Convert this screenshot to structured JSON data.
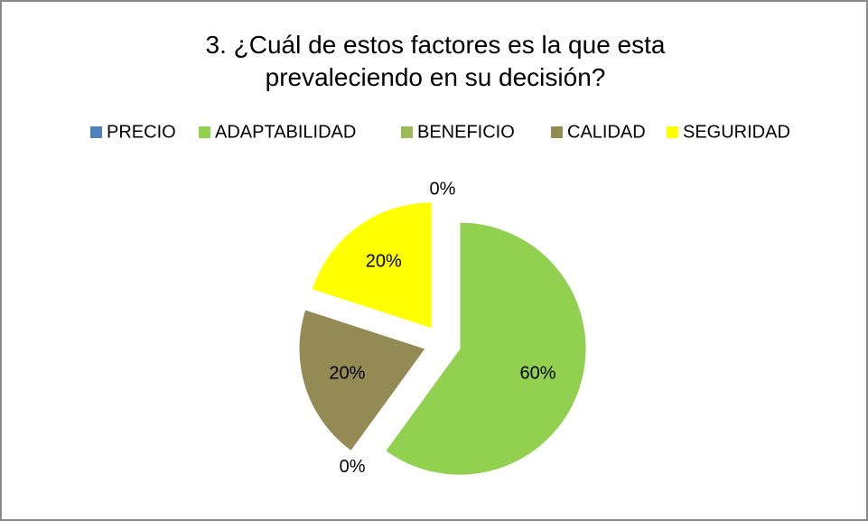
{
  "chart_data": {
    "type": "pie",
    "title": "3. ¿Cuál de estos factores es la que esta prevaleciendo en su decisión?",
    "categories": [
      "PRECIO",
      "ADAPTABILIDAD",
      "BENEFICIO",
      "CALIDAD",
      "SEGURIDAD"
    ],
    "values": [
      0,
      60,
      0,
      20,
      20
    ],
    "value_labels": [
      "0%",
      "60%",
      "0%",
      "20%",
      "20%"
    ],
    "colors": [
      "#4f81bd",
      "#92d050",
      "#9bbb59",
      "#948a54",
      "#ffff00"
    ],
    "legend": "top"
  }
}
